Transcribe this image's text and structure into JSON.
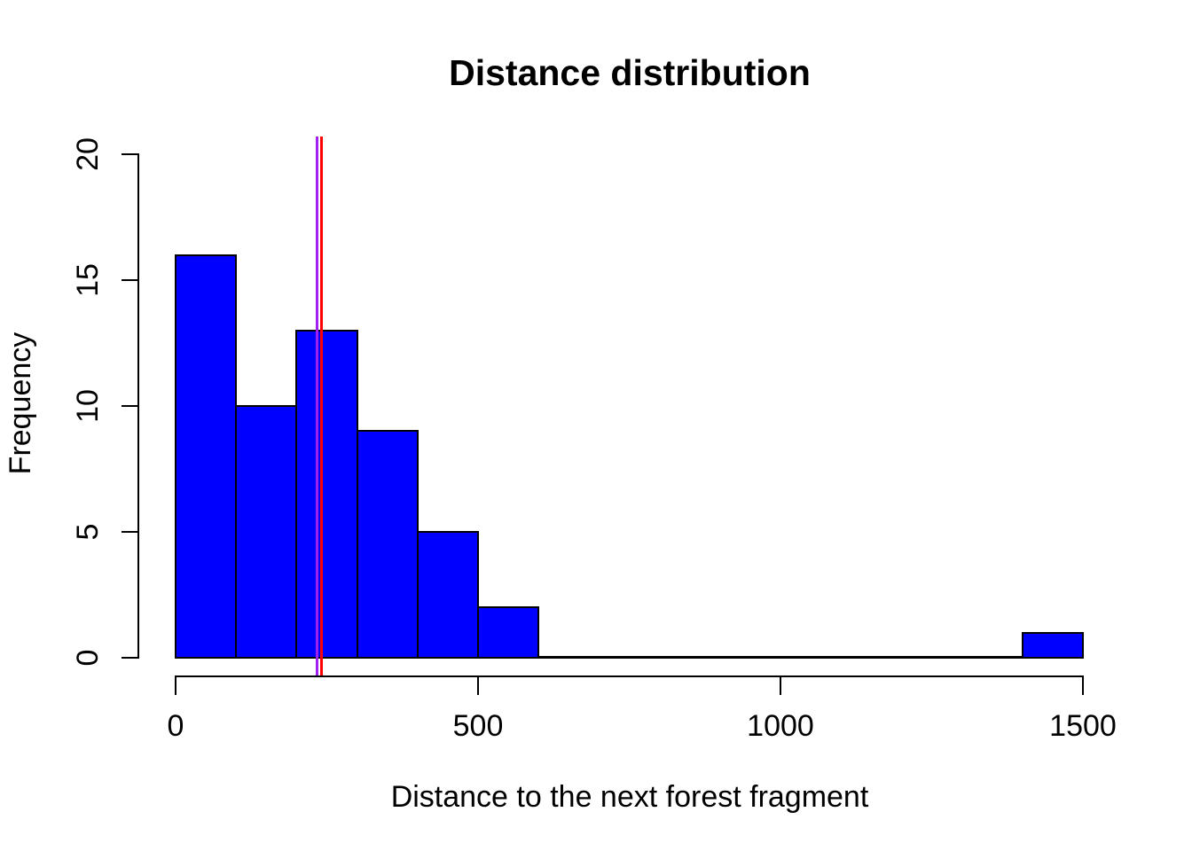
{
  "chart_data": {
    "type": "bar",
    "kind": "histogram",
    "title": "Distance distribution",
    "xlabel": "Distance to the next forest fragment",
    "ylabel": "Frequency",
    "xlim": [
      0,
      1500
    ],
    "ylim": [
      0,
      20
    ],
    "x_ticks": [
      0,
      500,
      1000,
      1500
    ],
    "y_ticks": [
      0,
      5,
      10,
      15,
      20
    ],
    "bin_width": 100,
    "bins": [
      {
        "start": 0,
        "end": 100,
        "count": 16
      },
      {
        "start": 100,
        "end": 200,
        "count": 10
      },
      {
        "start": 200,
        "end": 300,
        "count": 13
      },
      {
        "start": 300,
        "end": 400,
        "count": 9
      },
      {
        "start": 400,
        "end": 500,
        "count": 5
      },
      {
        "start": 500,
        "end": 600,
        "count": 2
      },
      {
        "start": 600,
        "end": 700,
        "count": 0
      },
      {
        "start": 700,
        "end": 800,
        "count": 0
      },
      {
        "start": 800,
        "end": 900,
        "count": 0
      },
      {
        "start": 900,
        "end": 1000,
        "count": 0
      },
      {
        "start": 1000,
        "end": 1100,
        "count": 0
      },
      {
        "start": 1100,
        "end": 1200,
        "count": 0
      },
      {
        "start": 1200,
        "end": 1300,
        "count": 0
      },
      {
        "start": 1300,
        "end": 1400,
        "count": 0
      },
      {
        "start": 1400,
        "end": 1500,
        "count": 1
      }
    ],
    "reference_lines": [
      {
        "x": 234,
        "color": "#A020F0"
      },
      {
        "x": 241,
        "color": "#FF0000"
      }
    ],
    "colors": {
      "bar_fill": "#0000FF",
      "bar_border": "#000000",
      "axis": "#000000",
      "text": "#000000",
      "background": "#FFFFFF"
    },
    "grid": false,
    "legend": null
  }
}
